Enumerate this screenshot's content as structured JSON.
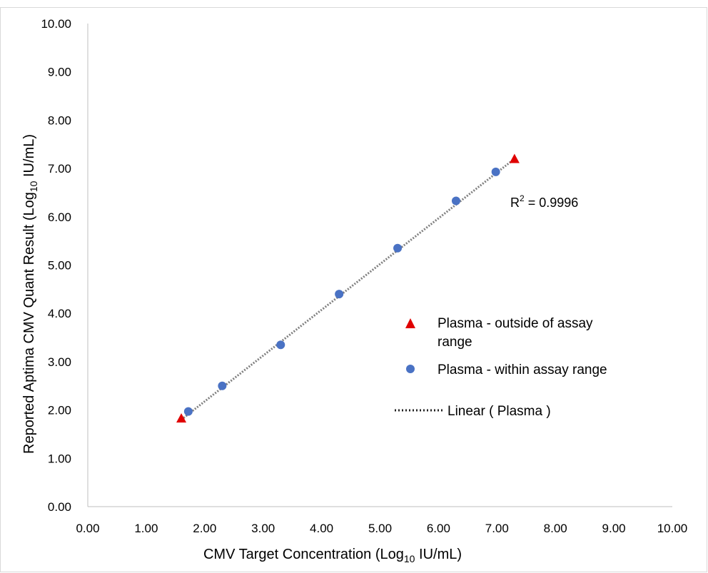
{
  "chart_data": {
    "type": "scatter",
    "xlabel_main": "CMV  Target  Concentration  (Log",
    "xlabel_sub": "10",
    "xlabel_tail": " IU/mL)",
    "ylabel_main": "Reported  Aptima CMV  Quant  Result  (Log",
    "ylabel_sub": "10",
    "ylabel_tail": "  IU/mL)",
    "xlim": [
      0,
      10
    ],
    "ylim": [
      0,
      10
    ],
    "x_ticks": [
      "0.00",
      "1.00",
      "2.00",
      "3.00",
      "4.00",
      "5.00",
      "6.00",
      "7.00",
      "8.00",
      "9.00",
      "10.00"
    ],
    "y_ticks": [
      "0.00",
      "1.00",
      "2.00",
      "3.00",
      "4.00",
      "5.00",
      "6.00",
      "7.00",
      "8.00",
      "9.00",
      "10.00"
    ],
    "grid": false,
    "legend_position": "right",
    "series": [
      {
        "name": "Plasma - outside of assay range",
        "name_lines": [
          "Plasma - outside of assay",
          "range"
        ],
        "marker": "triangle",
        "color": "#e00000",
        "points": [
          {
            "x": 1.6,
            "y": 1.83
          },
          {
            "x": 7.3,
            "y": 7.2
          }
        ]
      },
      {
        "name": "Plasma - within assay range",
        "name_lines": [
          "Plasma - within assay range"
        ],
        "marker": "circle",
        "color": "#4a72c4",
        "points": [
          {
            "x": 1.72,
            "y": 1.97
          },
          {
            "x": 2.3,
            "y": 2.5
          },
          {
            "x": 3.3,
            "y": 3.35
          },
          {
            "x": 4.3,
            "y": 4.4
          },
          {
            "x": 5.3,
            "y": 5.35
          },
          {
            "x": 6.3,
            "y": 6.33
          },
          {
            "x": 6.98,
            "y": 6.93
          }
        ]
      }
    ],
    "trendline": {
      "name": "Linear ( Plasma )",
      "color": "#808080",
      "from": {
        "x": 1.6,
        "y": 1.8
      },
      "to": {
        "x": 7.3,
        "y": 7.2
      }
    },
    "annotation": {
      "r2_label": "R",
      "r2_sup": "2",
      "r2_value": " = 0.9996"
    }
  }
}
